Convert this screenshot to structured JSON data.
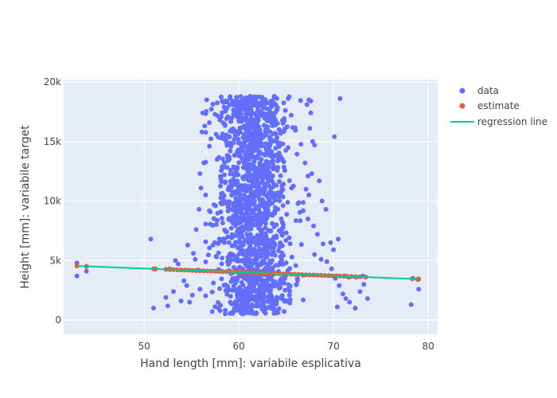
{
  "chart_data": {
    "type": "scatter",
    "xlabel": "Hand length [mm]: variabile esplicativa",
    "ylabel": "Height [mm]: variabile target",
    "xlim": [
      41.5,
      81
    ],
    "ylim": [
      -1200,
      20200
    ],
    "x_ticks": [
      50,
      60,
      70,
      80
    ],
    "x_tick_labels": [
      "50",
      "60",
      "70",
      "80"
    ],
    "y_ticks": [
      0,
      5000,
      10000,
      15000,
      20000
    ],
    "y_tick_labels": [
      "0",
      "5k",
      "10k",
      "15k",
      "20k"
    ],
    "grid": true,
    "legend_position": "top-right",
    "colors": {
      "plot_bg": "#e5ecf6",
      "grid": "#ffffff",
      "data": "#636efa",
      "estimate": "#ef553b",
      "regression": "#00cc96"
    },
    "series": [
      {
        "name": "data",
        "mode": "markers",
        "color": "#636efa",
        "bulk": {
          "x_center": 61.5,
          "x_sd": 1.9,
          "x_min": 56.5,
          "x_max": 66.8,
          "y_min": 500,
          "y_max": 18800,
          "count": 1600
        },
        "points": [
          [
            42.9,
            4800
          ],
          [
            42.9,
            3700
          ],
          [
            43.9,
            4100
          ],
          [
            43.9,
            4500
          ],
          [
            50.7,
            6800
          ],
          [
            51.0,
            1000
          ],
          [
            51.2,
            4300
          ],
          [
            52.3,
            1900
          ],
          [
            52.5,
            1200
          ],
          [
            52.7,
            4300
          ],
          [
            53.1,
            2400
          ],
          [
            53.3,
            5000
          ],
          [
            53.6,
            4700
          ],
          [
            53.9,
            1600
          ],
          [
            54.2,
            3300
          ],
          [
            54.5,
            2900
          ],
          [
            54.8,
            1500
          ],
          [
            55.1,
            2100
          ],
          [
            55.4,
            5100
          ],
          [
            55.7,
            4200
          ],
          [
            55.9,
            2600
          ],
          [
            54.6,
            6300
          ],
          [
            55.2,
            5600
          ],
          [
            55.5,
            7600
          ],
          [
            55.8,
            9300
          ],
          [
            56.0,
            11100
          ],
          [
            55.9,
            12300
          ],
          [
            56.3,
            13200
          ],
          [
            56.1,
            15800
          ],
          [
            56.4,
            16300
          ],
          [
            56.2,
            17400
          ],
          [
            56.6,
            18500
          ],
          [
            56.9,
            14600
          ],
          [
            56.5,
            10500
          ],
          [
            67.0,
            13200
          ],
          [
            67.3,
            12100
          ],
          [
            67.5,
            16100
          ],
          [
            67.6,
            17400
          ],
          [
            67.8,
            15000
          ],
          [
            67.4,
            18500
          ],
          [
            67.2,
            18100
          ],
          [
            67.6,
            18400
          ],
          [
            67.1,
            11000
          ],
          [
            67.4,
            10500
          ],
          [
            67.7,
            12300
          ],
          [
            68.0,
            14700
          ],
          [
            68.5,
            11700
          ],
          [
            68.8,
            10000
          ],
          [
            69.2,
            9300
          ],
          [
            67.3,
            8500
          ],
          [
            67.9,
            7900
          ],
          [
            68.3,
            7200
          ],
          [
            68.9,
            6400
          ],
          [
            69.7,
            6500
          ],
          [
            70.0,
            5900
          ],
          [
            70.5,
            6800
          ],
          [
            68.0,
            5500
          ],
          [
            68.7,
            5100
          ],
          [
            69.3,
            4900
          ],
          [
            69.8,
            4300
          ],
          [
            70.2,
            3500
          ],
          [
            70.6,
            2900
          ],
          [
            71.0,
            2200
          ],
          [
            71.3,
            1800
          ],
          [
            71.7,
            1500
          ],
          [
            72.3,
            1000
          ],
          [
            72.8,
            2400
          ],
          [
            73.2,
            3000
          ],
          [
            73.6,
            1800
          ],
          [
            70.4,
            1100
          ],
          [
            70.1,
            15400
          ],
          [
            70.7,
            18600
          ],
          [
            71.2,
            3700
          ],
          [
            71.6,
            3600
          ],
          [
            72.4,
            3600
          ],
          [
            73.1,
            3700
          ],
          [
            78.2,
            1300
          ],
          [
            78.4,
            3500
          ],
          [
            78.9,
            3400
          ],
          [
            79.0,
            2600
          ]
        ]
      },
      {
        "name": "estimate",
        "mode": "markers",
        "color": "#ef553b",
        "line_slope": -30.6,
        "line_intercept": 5857,
        "x_values": [
          42.9,
          43.9,
          51.0,
          51.2,
          52.3,
          52.7,
          53.1,
          53.5,
          53.9,
          54.3,
          54.7,
          55.1,
          55.5,
          55.9,
          56.3,
          56.7,
          57.1,
          57.5,
          57.9,
          58.3,
          58.7,
          59.1,
          59.5,
          59.9,
          60.3,
          60.7,
          61.1,
          61.5,
          61.9,
          62.3,
          62.7,
          63.1,
          63.5,
          63.9,
          64.3,
          64.7,
          65.1,
          65.5,
          65.9,
          66.3,
          66.7,
          67.1,
          67.5,
          67.9,
          68.3,
          68.7,
          69.1,
          69.5,
          69.9,
          70.3,
          70.7,
          71.1,
          71.5,
          71.9,
          72.3,
          72.8,
          73.4,
          78.3,
          78.9,
          79.0
        ]
      },
      {
        "name": "regression line",
        "mode": "lines",
        "color": "#00cc96",
        "x_range": [
          42.9,
          79.0
        ],
        "slope": -30.6,
        "intercept": 5857
      }
    ]
  }
}
